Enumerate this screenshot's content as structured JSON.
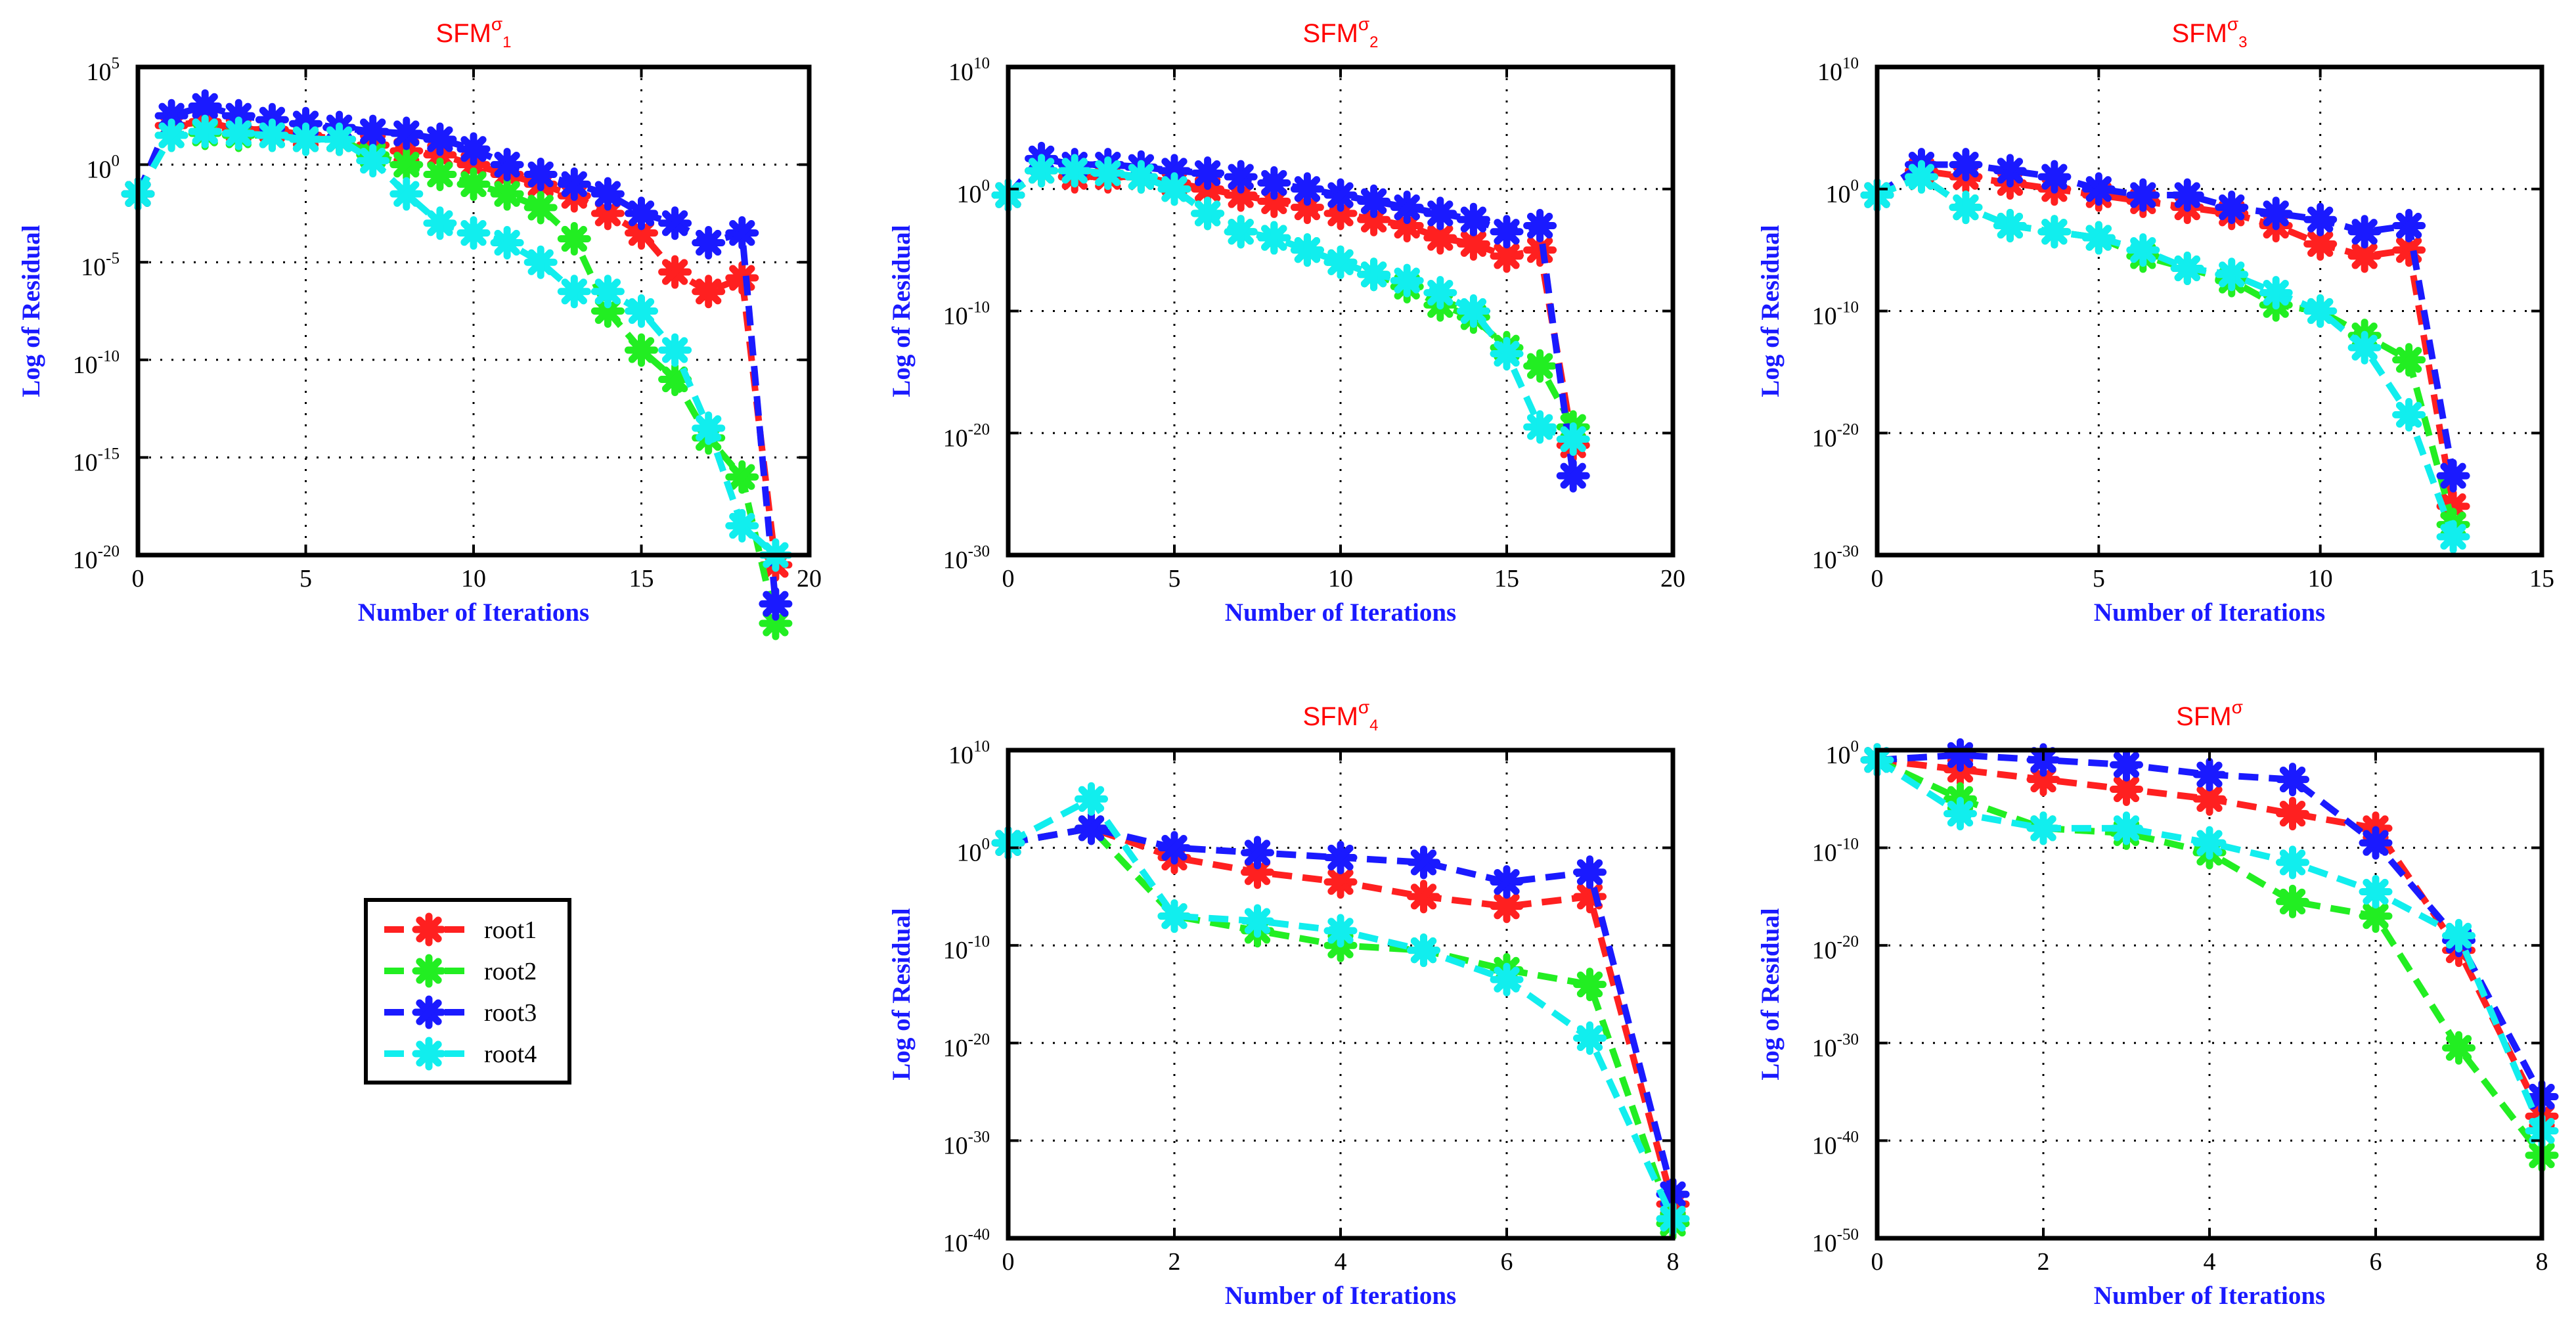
{
  "colors": {
    "root1": "#ff2020",
    "root2": "#22ee22",
    "root3": "#1a1aff",
    "root4": "#11eeee",
    "title": "#ff0000",
    "axis_label": "#1a1aff"
  },
  "legend": {
    "placement": "standalone-left-bottom",
    "entries": [
      "root1",
      "root2",
      "root3",
      "root4"
    ]
  },
  "chart_data": [
    {
      "type": "line",
      "title": "SFM",
      "title_sup": "σ",
      "title_sub": "1",
      "xlabel": "Number of Iterations",
      "ylabel": "Log of Residual",
      "y_scale": "log",
      "xlim": [
        0,
        20
      ],
      "x_ticks": [
        0,
        5,
        10,
        15,
        20
      ],
      "ylim_exp": [
        -20,
        5
      ],
      "y_tick_exps": [
        5,
        0,
        -5,
        -10,
        -15,
        -20
      ],
      "grid": true,
      "x": [
        0,
        1,
        2,
        3,
        4,
        5,
        6,
        7,
        8,
        9,
        10,
        11,
        12,
        13,
        14,
        15,
        16,
        17,
        18,
        19
      ],
      "series": [
        {
          "name": "root1",
          "color_key": "root1",
          "log10_values": [
            -1.5,
            2,
            2.2,
            1.8,
            1.8,
            1.5,
            1.3,
            1.0,
            0.7,
            0.5,
            0,
            -0.5,
            -1.0,
            -1.6,
            -2.5,
            -3.5,
            -5.5,
            -6.5,
            -5.8,
            -20.5
          ]
        },
        {
          "name": "root2",
          "color_key": "root2",
          "log10_values": [
            -1.5,
            1.5,
            1.6,
            1.5,
            1.5,
            1.3,
            1.3,
            0.5,
            0.0,
            -0.5,
            -1.0,
            -1.5,
            -2.2,
            -3.8,
            -7.5,
            -9.5,
            -11.0,
            -14.0,
            -16.0,
            -23.5
          ]
        },
        {
          "name": "root3",
          "color_key": "root3",
          "log10_values": [
            -1.5,
            2.5,
            3.0,
            2.5,
            2.3,
            2.1,
            1.9,
            1.7,
            1.6,
            1.3,
            0.8,
            0,
            -0.5,
            -1.0,
            -1.5,
            -2.5,
            -3.0,
            -4.0,
            -3.5,
            -22.5
          ]
        },
        {
          "name": "root4",
          "color_key": "root4",
          "log10_values": [
            -1.5,
            1.5,
            1.7,
            1.6,
            1.5,
            1.3,
            1.3,
            0.2,
            -1.5,
            -3.0,
            -3.5,
            -4.0,
            -5.0,
            -6.5,
            -6.5,
            -7.5,
            -9.5,
            -13.5,
            -18.5,
            -20.0
          ]
        }
      ]
    },
    {
      "type": "line",
      "title": "SFM",
      "title_sup": "σ",
      "title_sub": "2",
      "xlabel": "Number of Iterations",
      "ylabel": "Log of Residual",
      "y_scale": "log",
      "xlim": [
        0,
        20
      ],
      "x_ticks": [
        0,
        5,
        10,
        15,
        20
      ],
      "ylim_exp": [
        -30,
        10
      ],
      "y_tick_exps": [
        10,
        0,
        -10,
        -20,
        -30
      ],
      "grid": true,
      "x": [
        0,
        1,
        2,
        3,
        4,
        5,
        6,
        7,
        8,
        9,
        10,
        11,
        12,
        13,
        14,
        15,
        16,
        17
      ],
      "series": [
        {
          "name": "root1",
          "color_key": "root1",
          "log10_values": [
            -0.5,
            1.5,
            1.0,
            1.0,
            1.0,
            0.5,
            0,
            -0.5,
            -1.0,
            -1.5,
            -2.0,
            -2.5,
            -3.0,
            -4.0,
            -4.5,
            -5.5,
            -5.0,
            -21.0
          ]
        },
        {
          "name": "root2",
          "color_key": "root2",
          "log10_values": [
            -0.5,
            1.5,
            1.5,
            1.3,
            1.0,
            0,
            -2.0,
            -3.5,
            -4.0,
            -5.0,
            -6.0,
            -7.0,
            -8.0,
            -9.5,
            -10.5,
            -13.0,
            -14.5,
            -19.5
          ]
        },
        {
          "name": "root3",
          "color_key": "root3",
          "log10_values": [
            -0.5,
            2.5,
            2.0,
            2.0,
            1.8,
            1.5,
            1.3,
            1.0,
            0.5,
            0,
            -0.5,
            -1.0,
            -1.5,
            -2.0,
            -2.5,
            -3.5,
            -3.0,
            -23.5
          ]
        },
        {
          "name": "root4",
          "color_key": "root4",
          "log10_values": [
            -0.5,
            1.5,
            1.5,
            1.3,
            1.0,
            0,
            -2.0,
            -3.5,
            -4.0,
            -5.0,
            -6.0,
            -7.0,
            -7.5,
            -8.5,
            -10.0,
            -13.5,
            -19.5,
            -20.5
          ]
        }
      ]
    },
    {
      "type": "line",
      "title": "SFM",
      "title_sup": "σ",
      "title_sub": "3",
      "xlabel": "Number of Iterations",
      "ylabel": "Log of Residual",
      "y_scale": "log",
      "xlim": [
        0,
        15
      ],
      "x_ticks": [
        0,
        5,
        10,
        15
      ],
      "ylim_exp": [
        -30,
        10
      ],
      "y_tick_exps": [
        10,
        0,
        -10,
        -20,
        -30
      ],
      "grid": true,
      "x": [
        0,
        1,
        2,
        3,
        4,
        5,
        6,
        7,
        8,
        9,
        10,
        11,
        12,
        13
      ],
      "series": [
        {
          "name": "root1",
          "color_key": "root1",
          "log10_values": [
            -0.5,
            1.5,
            1.0,
            0.5,
            0,
            -0.5,
            -1.0,
            -1.5,
            -2.0,
            -3.0,
            -4.5,
            -5.5,
            -5.0,
            -26.0
          ]
        },
        {
          "name": "root2",
          "color_key": "root2",
          "log10_values": [
            -0.5,
            1.0,
            -1.5,
            -3.0,
            -3.5,
            -4.0,
            -5.5,
            -6.5,
            -7.5,
            -9.5,
            -10.0,
            -12.0,
            -14.0,
            -27.5
          ]
        },
        {
          "name": "root3",
          "color_key": "root3",
          "log10_values": [
            -0.5,
            2.0,
            2.0,
            1.5,
            1.0,
            0,
            -0.5,
            -0.5,
            -1.5,
            -2.0,
            -2.5,
            -3.5,
            -3.0,
            -23.5
          ]
        },
        {
          "name": "root4",
          "color_key": "root4",
          "log10_values": [
            -0.5,
            1.0,
            -1.5,
            -3.0,
            -3.5,
            -4.0,
            -5.0,
            -6.5,
            -7.0,
            -8.5,
            -10.0,
            -13.0,
            -18.5,
            -28.5
          ]
        }
      ]
    },
    {
      "type": "line",
      "title": "SFM",
      "title_sup": "σ",
      "title_sub": "4",
      "xlabel": "Number of Iterations",
      "ylabel": "Log of Residual",
      "y_scale": "log",
      "xlim": [
        0,
        8
      ],
      "x_ticks": [
        0,
        2,
        4,
        6,
        8
      ],
      "ylim_exp": [
        -40,
        10
      ],
      "y_tick_exps": [
        10,
        0,
        -10,
        -20,
        -30,
        -40
      ],
      "grid": true,
      "x": [
        0,
        1,
        2,
        3,
        4,
        5,
        6,
        7,
        8
      ],
      "series": [
        {
          "name": "root1",
          "color_key": "root1",
          "log10_values": [
            0.5,
            2.0,
            -1.0,
            -2.5,
            -3.5,
            -5.0,
            -6.0,
            -5.0,
            -36.5
          ]
        },
        {
          "name": "root2",
          "color_key": "root2",
          "log10_values": [
            0.5,
            2.0,
            -7.0,
            -8.5,
            -10.0,
            -10.5,
            -12.5,
            -14.0,
            -38.5
          ]
        },
        {
          "name": "root3",
          "color_key": "root3",
          "log10_values": [
            0.5,
            2.0,
            0,
            -0.5,
            -1.0,
            -1.5,
            -3.5,
            -2.5,
            -35.5
          ]
        },
        {
          "name": "root4",
          "color_key": "root4",
          "log10_values": [
            0.5,
            5.0,
            -7.0,
            -7.5,
            -8.5,
            -10.5,
            -13.5,
            -19.5,
            -38.0
          ]
        }
      ]
    },
    {
      "type": "line",
      "title": "SFM",
      "title_sup": "σ",
      "title_sub": "",
      "xlabel": "Number of Iterations",
      "ylabel": "Log of Residual",
      "y_scale": "log",
      "xlim": [
        0,
        8
      ],
      "x_ticks": [
        0,
        2,
        4,
        6,
        8
      ],
      "ylim_exp": [
        -50,
        0
      ],
      "y_tick_exps": [
        0,
        -10,
        -20,
        -30,
        -40,
        -50
      ],
      "grid": true,
      "x": [
        0,
        1,
        2,
        3,
        4,
        5,
        6,
        7,
        8
      ],
      "series": [
        {
          "name": "root1",
          "color_key": "root1",
          "log10_values": [
            -1.0,
            -2.0,
            -3.0,
            -4.0,
            -5.0,
            -6.5,
            -8.0,
            -20.5,
            -37.5
          ]
        },
        {
          "name": "root2",
          "color_key": "root2",
          "log10_values": [
            -1.0,
            -5.0,
            -8.0,
            -8.5,
            -10.5,
            -15.5,
            -17.0,
            -30.5,
            -41.5
          ]
        },
        {
          "name": "root3",
          "color_key": "root3",
          "log10_values": [
            -1.0,
            -0.5,
            -1.0,
            -1.5,
            -2.5,
            -3.0,
            -9.5,
            -19.5,
            -35.5
          ]
        },
        {
          "name": "root4",
          "color_key": "root4",
          "log10_values": [
            -1.0,
            -6.5,
            -8.0,
            -8.0,
            -9.5,
            -11.5,
            -14.5,
            -19.0,
            -39.0
          ]
        }
      ]
    }
  ]
}
